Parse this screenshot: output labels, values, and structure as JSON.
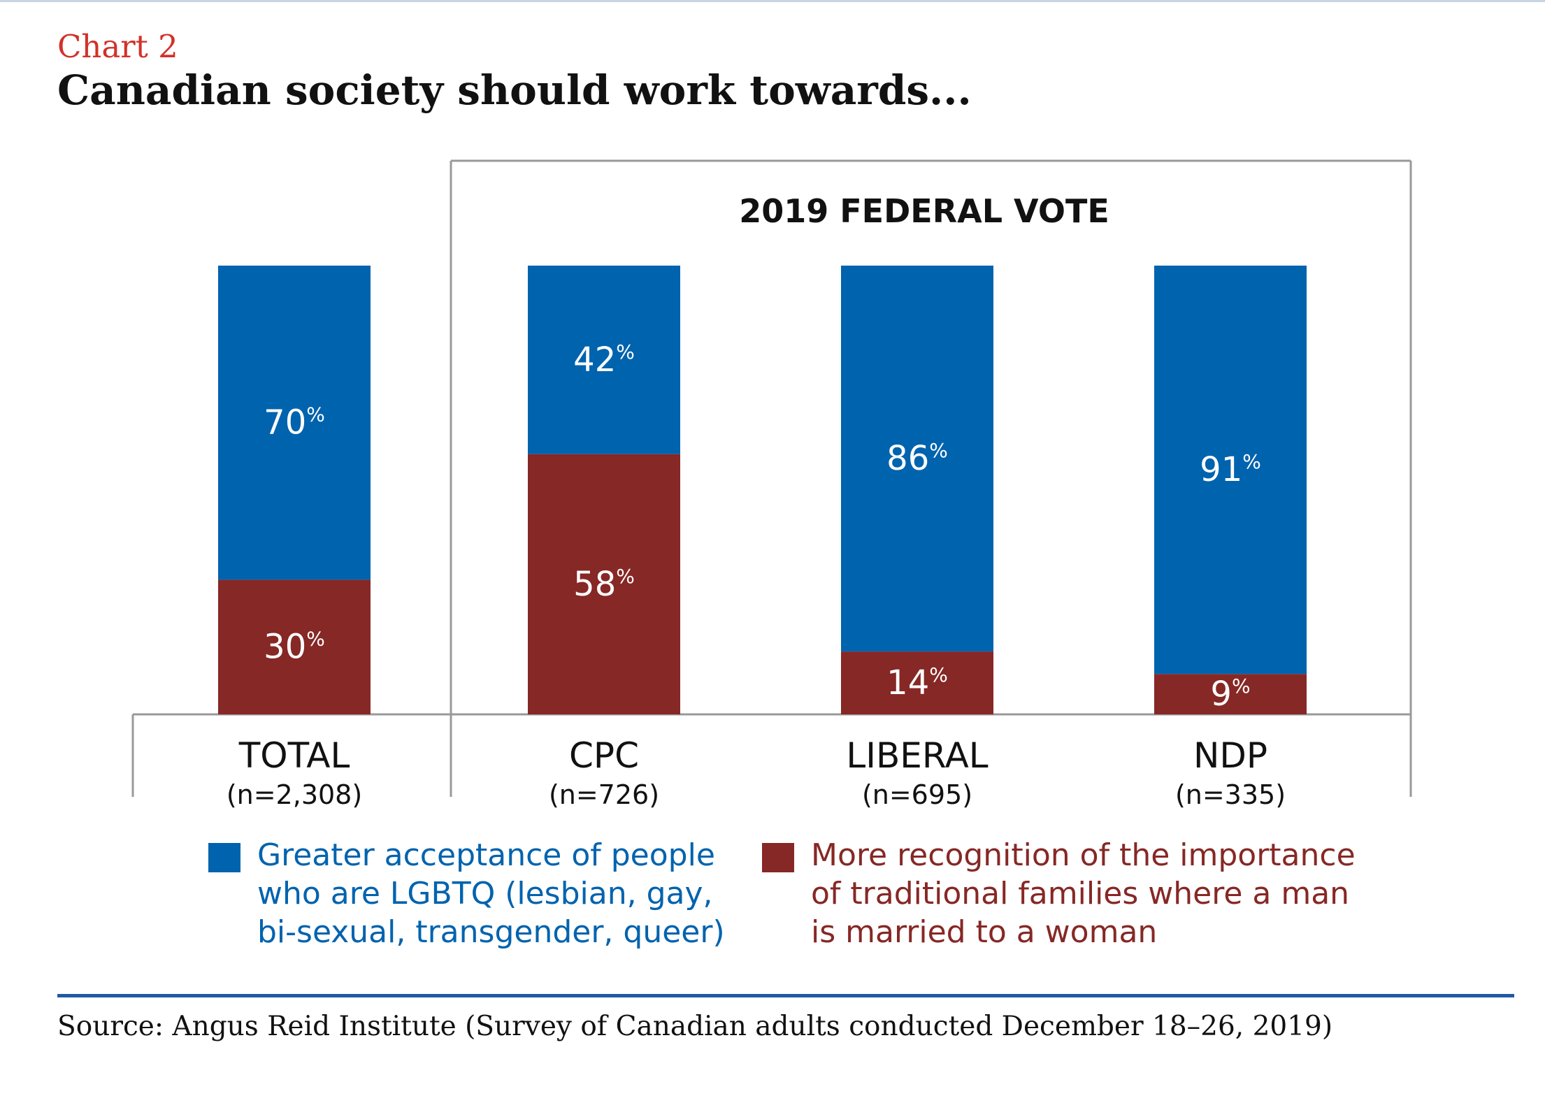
{
  "chart_label": "Chart 2",
  "title": "Canadian society should work towards...",
  "colors": {
    "accent": "#0063ae",
    "traditional": "#862825",
    "label_red": "#d2312a",
    "frame": "#999999",
    "rule": "#1f5aa6"
  },
  "group_label": "2019 FEDERAL VOTE",
  "legend": [
    {
      "name": "Greater acceptance of people\nwho are LGBTQ (lesbian, gay,\nbi-sexual, transgender, queer)",
      "color": "#0063ae"
    },
    {
      "name": "More recognition of the importance\nof traditional families where a man\nis married to a woman",
      "color": "#862825"
    }
  ],
  "source": "Source: Angus Reid Institute (Survey of Canadian adults conducted December 18–26, 2019)",
  "chart_data": {
    "type": "bar",
    "stacked": true,
    "ylim": [
      0,
      100
    ],
    "grid": false,
    "legend_position": "bottom",
    "categories": [
      "TOTAL",
      "CPC",
      "LIBERAL",
      "NDP"
    ],
    "sample_sizes": [
      "(n=2,308)",
      "(n=726)",
      "(n=695)",
      "(n=335)"
    ],
    "series": [
      {
        "name": "More recognition of the importance of traditional families where a man is married to a woman",
        "color": "#862825",
        "values": [
          30,
          58,
          14,
          9
        ]
      },
      {
        "name": "Greater acceptance of people who are LGBTQ (lesbian, gay, bi-sexual, transgender, queer)",
        "color": "#0063ae",
        "values": [
          70,
          42,
          86,
          91
        ]
      }
    ],
    "value_suffix": "%"
  }
}
